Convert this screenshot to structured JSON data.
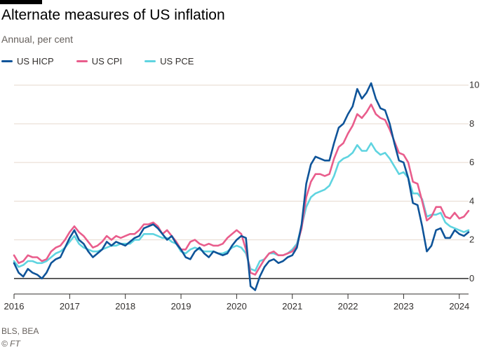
{
  "title": "Alternate measures of US inflation",
  "subtitle": "Annual, per cent",
  "source": "BLS, BEA",
  "credit": "© FT",
  "chart_data": {
    "type": "line",
    "title": "Alternate measures of US inflation",
    "subtitle": "Annual, per cent",
    "xlabel": "",
    "ylabel": "",
    "x_ticks": [
      "2016",
      "2017",
      "2018",
      "2019",
      "2020",
      "2021",
      "2022",
      "2023",
      "2024"
    ],
    "y_ticks": [
      0,
      2,
      4,
      6,
      8,
      10
    ],
    "ylim": [
      -0.8,
      10.6
    ],
    "xlim": [
      "2016-01",
      "2024-03"
    ],
    "grid": "horizontal",
    "legend": "top-left",
    "start_month": "2016-01",
    "colors": {
      "axis": "#33302e",
      "grid": "#e6d9ce",
      "zero": "#000000"
    },
    "series": [
      {
        "name": "US HICP",
        "color": "#0f5499",
        "values": [
          0.8,
          0.3,
          0.1,
          0.5,
          0.3,
          0.2,
          0.0,
          0.3,
          0.8,
          1.0,
          1.1,
          1.6,
          2.1,
          2.5,
          2.0,
          1.8,
          1.4,
          1.1,
          1.3,
          1.5,
          1.9,
          1.7,
          1.9,
          1.8,
          1.7,
          1.9,
          2.1,
          2.2,
          2.6,
          2.7,
          2.8,
          2.6,
          2.3,
          2.0,
          2.2,
          1.8,
          1.5,
          1.1,
          1.0,
          1.4,
          1.6,
          1.3,
          1.1,
          1.4,
          1.3,
          1.2,
          1.3,
          1.7,
          2.0,
          2.2,
          2.1,
          -0.4,
          -0.6,
          0.1,
          0.6,
          0.9,
          1.0,
          0.8,
          0.9,
          1.1,
          1.2,
          1.6,
          2.8,
          4.9,
          5.9,
          6.3,
          6.2,
          6.1,
          6.1,
          7.0,
          7.8,
          8.0,
          8.5,
          8.9,
          9.8,
          9.3,
          9.6,
          10.1,
          9.3,
          8.8,
          8.7,
          8.0,
          7.0,
          6.1,
          6.0,
          5.2,
          3.9,
          3.8,
          2.7,
          1.4,
          1.7,
          2.5,
          2.6,
          2.1,
          2.1,
          2.5,
          2.3,
          2.2,
          2.4
        ]
      },
      {
        "name": "US CPI",
        "color": "#e95d8c",
        "values": [
          1.2,
          0.8,
          0.9,
          1.2,
          1.1,
          1.1,
          0.9,
          1.0,
          1.4,
          1.6,
          1.7,
          2.0,
          2.4,
          2.7,
          2.4,
          2.2,
          1.9,
          1.6,
          1.7,
          1.9,
          2.2,
          2.0,
          2.2,
          2.1,
          2.2,
          2.3,
          2.3,
          2.5,
          2.8,
          2.8,
          2.9,
          2.7,
          2.3,
          2.5,
          2.2,
          1.9,
          1.5,
          1.5,
          1.9,
          2.0,
          1.8,
          1.7,
          1.8,
          1.7,
          1.7,
          1.8,
          2.1,
          2.3,
          2.5,
          2.3,
          1.5,
          0.3,
          0.2,
          0.6,
          1.0,
          1.3,
          1.4,
          1.2,
          1.2,
          1.3,
          1.4,
          1.7,
          2.6,
          4.2,
          5.0,
          5.4,
          5.4,
          5.3,
          5.4,
          6.2,
          6.8,
          7.0,
          7.5,
          7.9,
          8.5,
          8.3,
          8.6,
          9.0,
          8.5,
          8.3,
          8.2,
          7.7,
          7.1,
          6.5,
          6.4,
          6.0,
          5.0,
          4.9,
          4.0,
          3.0,
          3.2,
          3.7,
          3.7,
          3.2,
          3.1,
          3.4,
          3.1,
          3.2,
          3.5
        ]
      },
      {
        "name": "US PCE",
        "color": "#5fd4e0",
        "values": [
          0.9,
          0.6,
          0.7,
          0.9,
          0.9,
          0.8,
          0.8,
          0.9,
          1.1,
          1.3,
          1.4,
          1.6,
          1.9,
          2.2,
          1.8,
          1.6,
          1.5,
          1.4,
          1.4,
          1.5,
          1.6,
          1.7,
          1.7,
          1.8,
          1.8,
          1.8,
          2.0,
          2.0,
          2.3,
          2.3,
          2.3,
          2.2,
          2.1,
          2.1,
          1.9,
          1.8,
          1.4,
          1.3,
          1.5,
          1.6,
          1.5,
          1.4,
          1.4,
          1.4,
          1.3,
          1.3,
          1.4,
          1.6,
          1.7,
          1.6,
          1.3,
          0.5,
          0.4,
          0.9,
          1.0,
          1.3,
          1.3,
          1.2,
          1.2,
          1.3,
          1.5,
          1.8,
          2.7,
          3.7,
          4.2,
          4.4,
          4.5,
          4.6,
          4.8,
          5.3,
          6.0,
          6.2,
          6.3,
          6.5,
          6.9,
          6.6,
          6.6,
          7.0,
          6.6,
          6.4,
          6.5,
          6.2,
          5.8,
          5.4,
          5.5,
          5.2,
          4.4,
          4.4,
          4.1,
          3.2,
          3.3,
          3.3,
          3.4,
          2.9,
          2.7,
          2.6,
          2.5,
          2.4,
          2.5
        ]
      }
    ]
  }
}
